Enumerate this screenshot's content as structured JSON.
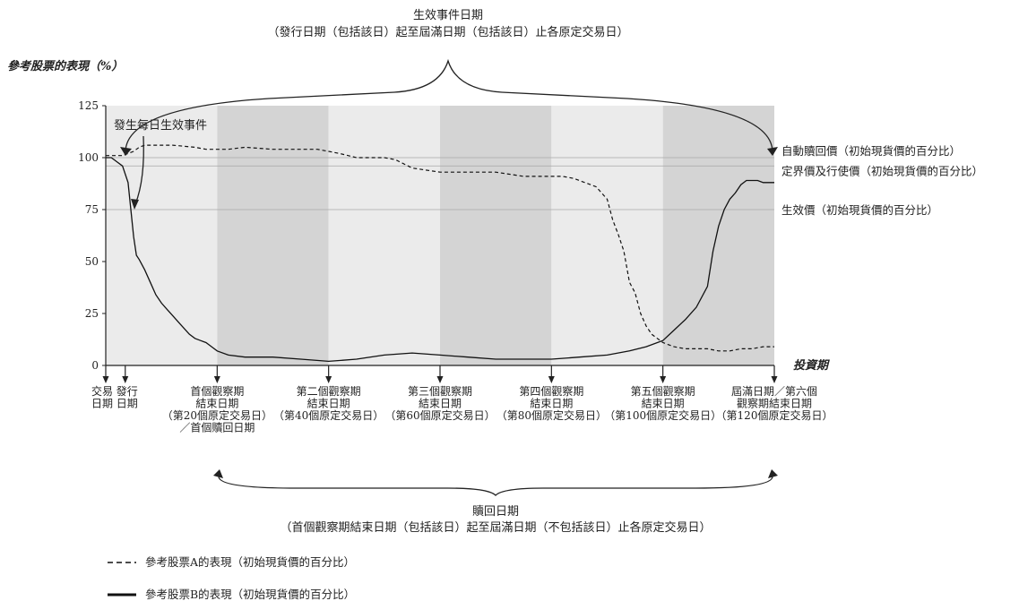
{
  "chart_data": {
    "type": "line",
    "top_title_line1": "生效事件日期",
    "top_title_line2": "（發行日期（包括該日）起至屆滿日期（包括該日）止各原定交易日）",
    "ylabel": "參考股票的表現（%）",
    "xlabel": "投資期",
    "ylim": [
      0,
      125
    ],
    "xlim": [
      0,
      120
    ],
    "yticks": [
      0,
      25,
      50,
      75,
      100,
      125
    ],
    "ytick_labels": [
      "0",
      "25",
      "50",
      "75",
      "100",
      "125"
    ],
    "event_text": "發生每日生效事件",
    "reference_lines": [
      {
        "value": 100,
        "label": "自動贖回價（初始現貨價的百分比）"
      },
      {
        "value": 96,
        "label": "定界價及行使價（初始現貨價的百分比）"
      },
      {
        "value": 75,
        "label": "生效價（初始現貨價的百分比）"
      }
    ],
    "period_bands": [
      {
        "from": 0,
        "to": 20,
        "shade": "light"
      },
      {
        "from": 20,
        "to": 40,
        "shade": "dark"
      },
      {
        "from": 40,
        "to": 60,
        "shade": "light"
      },
      {
        "from": 60,
        "to": 80,
        "shade": "dark"
      },
      {
        "from": 80,
        "to": 100,
        "shade": "light"
      },
      {
        "from": 100,
        "to": 120,
        "shade": "dark"
      }
    ],
    "x_markers": [
      {
        "x": 0,
        "lines": [
          "交易",
          "日期"
        ]
      },
      {
        "x": 3.5,
        "lines": [
          "發行",
          "日期"
        ]
      },
      {
        "x": 20,
        "lines": [
          "首個觀察期",
          "結束日期",
          "（第20個原定交易日）",
          "／首個贖回日期"
        ]
      },
      {
        "x": 40,
        "lines": [
          "第二個觀察期",
          "結束日期",
          "（第40個原定交易日）"
        ]
      },
      {
        "x": 60,
        "lines": [
          "第三個觀察期",
          "結束日期",
          "（第60個原定交易日）"
        ]
      },
      {
        "x": 80,
        "lines": [
          "第四個觀察期",
          "結束日期",
          "（第80個原定交易日）"
        ]
      },
      {
        "x": 100,
        "lines": [
          "第五個觀察期",
          "結束日期",
          "（第100個原定交易日）"
        ]
      },
      {
        "x": 120,
        "lines": [
          "屆滿日期／第六個",
          "觀察期結束日期",
          "（第120個原定交易日）"
        ]
      }
    ],
    "bottom_title_line1": "贖回日期",
    "bottom_title_line2": "（首個觀察期結束日期（包括該日）起至屆滿日期（不包括該日）止各原定交易日）",
    "series": [
      {
        "name": "參考股票A的表現（初始現貨價的百分比）",
        "style": "dashed",
        "x": [
          0,
          3,
          5,
          6,
          7,
          8,
          12,
          16,
          18,
          20,
          22,
          25,
          30,
          35,
          38,
          40,
          42,
          45,
          50,
          52,
          55,
          60,
          63,
          66,
          70,
          75,
          78,
          80,
          82,
          84,
          86,
          88,
          89,
          90,
          91,
          92,
          93,
          94,
          95,
          96,
          97,
          98,
          99,
          100,
          102,
          104,
          106,
          108,
          110,
          112,
          114,
          116,
          118,
          120
        ],
        "y": [
          101,
          101,
          103,
          105,
          106,
          106,
          106,
          105,
          104,
          104,
          104,
          105,
          104,
          104,
          104,
          103,
          102,
          100,
          100,
          99,
          95,
          93,
          93,
          93,
          93,
          91,
          91,
          91,
          91,
          90,
          88,
          86,
          83,
          80,
          70,
          63,
          55,
          40,
          35,
          25,
          19,
          15,
          13,
          11,
          9,
          8,
          8,
          8,
          7,
          7,
          8,
          8,
          9,
          9
        ]
      },
      {
        "name": "參考股票B的表現（初始現貨價的百分比）",
        "style": "solid",
        "x": [
          0,
          1,
          2,
          3,
          4,
          4.5,
          5,
          5.5,
          6,
          7,
          8,
          9,
          10,
          11,
          12,
          13,
          14,
          15,
          16,
          17,
          18,
          19,
          20,
          22,
          25,
          30,
          35,
          40,
          45,
          50,
          55,
          60,
          65,
          70,
          75,
          80,
          85,
          90,
          94,
          97,
          100,
          102,
          104,
          106,
          108,
          109,
          110,
          111,
          112,
          113,
          114,
          115,
          116,
          117,
          118,
          120
        ],
        "y": [
          100,
          100,
          98,
          96,
          88,
          75,
          62,
          53,
          51,
          46,
          40,
          34,
          30,
          27,
          24,
          21,
          18,
          15,
          13,
          12,
          11,
          9,
          7,
          5,
          4,
          4,
          3,
          2,
          3,
          5,
          6,
          5,
          4,
          3,
          3,
          3,
          4,
          5,
          7,
          9,
          12,
          17,
          22,
          28,
          38,
          55,
          67,
          75,
          80,
          83,
          87,
          89,
          89,
          89,
          88,
          88
        ]
      }
    ]
  }
}
